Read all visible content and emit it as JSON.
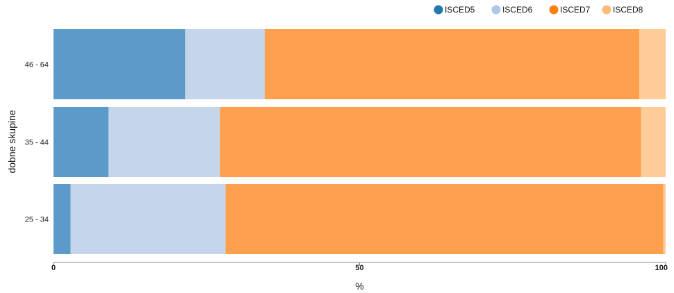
{
  "chart_data": {
    "type": "bar",
    "orientation": "horizontal",
    "stacked": true,
    "categories": [
      "46 - 64",
      "35 - 44",
      "25 - 34"
    ],
    "series": [
      {
        "name": "ISCED5",
        "values": [
          21.5,
          9.0,
          2.8
        ],
        "color": "#5b9ac9",
        "legend_color": "#1f77b4"
      },
      {
        "name": "ISCED6",
        "values": [
          13.0,
          18.2,
          25.3
        ],
        "color": "#c4d5ec",
        "legend_color": "#aec7e8"
      },
      {
        "name": "ISCED7",
        "values": [
          61.2,
          68.8,
          71.5
        ],
        "color": "#fea04d",
        "legend_color": "#ff7f0e"
      },
      {
        "name": "ISCED8",
        "values": [
          4.3,
          4.0,
          0.4
        ],
        "color": "#ffcc98",
        "legend_color": "#ffbb78"
      }
    ],
    "xlabel": "%",
    "ylabel": "dobne skupine",
    "xlim": [
      0,
      100
    ],
    "xticks": [
      "0",
      "50",
      "100"
    ],
    "legend_position": "top-right",
    "grid": false
  }
}
